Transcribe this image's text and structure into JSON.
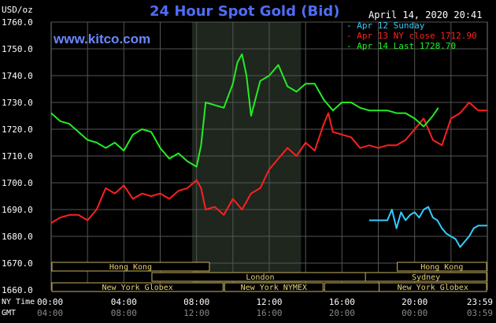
{
  "header": {
    "title": "24 Hour Spot Gold (Bid)",
    "site": "www.kitco.com",
    "timestamp": "April 14, 2020 20:41",
    "units": "USD/oz"
  },
  "legend": [
    {
      "label": "- Apr 12 Sunday",
      "color": "#33ccff"
    },
    {
      "label": "- Apr 13 NY close 1712.90",
      "color": "#ff2020"
    },
    {
      "label": "- Apr 14 Last 1728.70",
      "color": "#22ee22"
    }
  ],
  "row_labels": {
    "ny_time": "NY Time",
    "gmt": "GMT"
  },
  "sessions": [
    {
      "label": "Hong Kong",
      "row": 0,
      "start": 0.0,
      "end": 8.75
    },
    {
      "label": "London",
      "row": 1,
      "start": 0.0,
      "end": 0.0
    },
    {
      "label": "London",
      "row": 1,
      "start": 5.5,
      "end": 17.5
    },
    {
      "label": "New York Globex",
      "row": 2,
      "start": 0.0,
      "end": 9.5
    },
    {
      "label": "New York NYMEX",
      "row": 2,
      "start": 9.5,
      "end": 15.0
    },
    {
      "label": "NY Globex",
      "row": 2,
      "start": 15.0,
      "end": 24.0
    },
    {
      "label": "Hong Kong",
      "row": 0,
      "start": 19.0,
      "end": 24.0
    },
    {
      "label": "Sydney",
      "row": 1,
      "start": 17.25,
      "end": 24.0
    },
    {
      "label": "New York Globex",
      "row": 2,
      "start": 18.0,
      "end": 24.0
    }
  ],
  "chart_data": {
    "type": "line",
    "ylim": [
      1660,
      1760
    ],
    "xlim": [
      0,
      24
    ],
    "grid": true,
    "highlight_band": [
      7.75,
      13.75
    ],
    "x_ticks": [
      "00:00",
      "04:00",
      "08:00",
      "12:00",
      "16:00",
      "20:00",
      "23:59"
    ],
    "x_tick_positions": [
      0,
      4,
      8,
      12,
      16,
      20,
      23.98
    ],
    "gmt_ticks": [
      "04:00",
      "08:00",
      "12:00",
      "16:00",
      "20:00",
      "00:00",
      "03:59"
    ],
    "y_ticks": [
      "1760.0",
      "1750.0",
      "1740.0",
      "1730.0",
      "1720.0",
      "1710.0",
      "1700.0",
      "1690.0",
      "1680.0",
      "1670.0",
      "1660.0"
    ],
    "series": [
      {
        "name": "Apr 13 NY close 1712.90",
        "color": "#ff2020",
        "x": [
          0,
          0.5,
          1,
          1.5,
          2,
          2.5,
          3,
          3.5,
          4,
          4.5,
          5,
          5.5,
          6,
          6.5,
          7,
          7.5,
          8,
          8.25,
          8.5,
          9,
          9.5,
          10,
          10.5,
          11,
          11.5,
          12,
          12.5,
          13,
          13.5,
          14,
          14.5,
          15,
          15.25,
          15.5,
          16,
          16.5,
          17,
          17.5,
          18,
          18.5,
          19,
          19.5,
          20,
          20.5,
          21,
          21.5,
          22,
          22.5,
          23,
          23.5,
          24
        ],
        "y": [
          1685,
          1687,
          1688,
          1688,
          1686,
          1690,
          1698,
          1696,
          1699,
          1694,
          1696,
          1695,
          1696,
          1694,
          1697,
          1698,
          1701,
          1698,
          1690,
          1691,
          1688,
          1694,
          1690,
          1696,
          1698,
          1705,
          1709,
          1713,
          1710,
          1715,
          1712,
          1722,
          1726,
          1719,
          1718,
          1717,
          1713,
          1714,
          1713,
          1714,
          1714,
          1716,
          1720,
          1724,
          1716,
          1714,
          1724,
          1726,
          1730,
          1727,
          1727
        ]
      },
      {
        "name": "Apr 14 Last 1728.70",
        "color": "#22ee22",
        "x": [
          0,
          0.5,
          1,
          1.5,
          2,
          2.5,
          3,
          3.5,
          4,
          4.5,
          5,
          5.5,
          6,
          6.5,
          7,
          7.5,
          8,
          8.25,
          8.5,
          9,
          9.5,
          10,
          10.25,
          10.5,
          10.75,
          11,
          11.5,
          12,
          12.5,
          13,
          13.5,
          14,
          14.5,
          15,
          15.5,
          16,
          16.5,
          17,
          17.5,
          18,
          18.5,
          19,
          19.5,
          20,
          20.5,
          21,
          21.3
        ],
        "y": [
          1726,
          1723,
          1722,
          1719,
          1716,
          1715,
          1713,
          1715,
          1712,
          1718,
          1720,
          1719,
          1713,
          1709,
          1711,
          1708,
          1706,
          1714,
          1730,
          1729,
          1728,
          1737,
          1745,
          1748,
          1740,
          1725,
          1738,
          1740,
          1744,
          1736,
          1734,
          1737,
          1737,
          1731,
          1727,
          1730,
          1730,
          1728,
          1727,
          1727,
          1727,
          1726,
          1726,
          1724,
          1721,
          1725,
          1728
        ]
      },
      {
        "name": "Apr 12 Sunday",
        "color": "#33ccff",
        "x": [
          17.5,
          18.0,
          18.5,
          18.75,
          19,
          19.25,
          19.5,
          19.75,
          20,
          20.25,
          20.5,
          20.75,
          21,
          21.25,
          21.5,
          21.75,
          22,
          22.25,
          22.5,
          22.75,
          23,
          23.25,
          23.5,
          23.75,
          24
        ],
        "y": [
          1686,
          1686,
          1686,
          1690,
          1683,
          1689,
          1686,
          1688,
          1689,
          1687,
          1690,
          1691,
          1687,
          1686,
          1683,
          1681,
          1680,
          1679,
          1676,
          1678,
          1680,
          1683,
          1684,
          1684,
          1684
        ]
      }
    ]
  }
}
